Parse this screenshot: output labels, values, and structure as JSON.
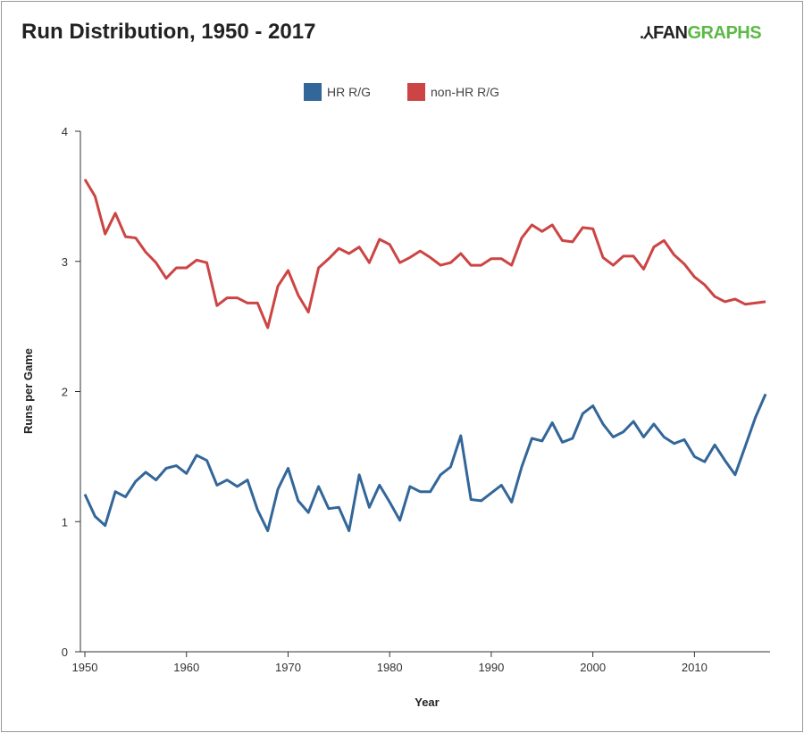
{
  "chart_data": {
    "type": "line",
    "title": "Run Distribution, 1950 - 2017",
    "logo": "FANGRAPHS",
    "xlabel": "Year",
    "ylabel": "Runs per Game",
    "xlim": [
      1950,
      2017
    ],
    "ylim": [
      0,
      4
    ],
    "xticks": [
      "1950",
      "1960",
      "1970",
      "1980",
      "1990",
      "2000",
      "2010"
    ],
    "yticks": [
      "0",
      "1",
      "2",
      "3",
      "4"
    ],
    "grid": false,
    "legend_position": "top-center",
    "x": [
      1950,
      1951,
      1952,
      1953,
      1954,
      1955,
      1956,
      1957,
      1958,
      1959,
      1960,
      1961,
      1962,
      1963,
      1964,
      1965,
      1966,
      1967,
      1968,
      1969,
      1970,
      1971,
      1972,
      1973,
      1974,
      1975,
      1976,
      1977,
      1978,
      1979,
      1980,
      1981,
      1982,
      1983,
      1984,
      1985,
      1986,
      1987,
      1988,
      1989,
      1990,
      1991,
      1992,
      1993,
      1994,
      1995,
      1996,
      1997,
      1998,
      1999,
      2000,
      2001,
      2002,
      2003,
      2004,
      2005,
      2006,
      2007,
      2008,
      2009,
      2010,
      2011,
      2012,
      2013,
      2014,
      2015,
      2016,
      2017
    ],
    "series": [
      {
        "name": "HR R/G",
        "color": "#336699",
        "values": [
          1.21,
          1.04,
          0.97,
          1.23,
          1.19,
          1.31,
          1.38,
          1.32,
          1.41,
          1.43,
          1.37,
          1.51,
          1.47,
          1.28,
          1.32,
          1.27,
          1.32,
          1.09,
          0.93,
          1.25,
          1.41,
          1.16,
          1.07,
          1.27,
          1.1,
          1.11,
          0.93,
          1.36,
          1.11,
          1.28,
          1.15,
          1.01,
          1.27,
          1.23,
          1.23,
          1.36,
          1.42,
          1.66,
          1.17,
          1.16,
          1.22,
          1.28,
          1.15,
          1.42,
          1.64,
          1.62,
          1.76,
          1.61,
          1.64,
          1.83,
          1.89,
          1.75,
          1.65,
          1.69,
          1.77,
          1.65,
          1.75,
          1.65,
          1.6,
          1.63,
          1.5,
          1.46,
          1.59,
          1.47,
          1.36,
          1.58,
          1.8,
          1.98
        ]
      },
      {
        "name": "non-HR R/G",
        "color": "#cc4444",
        "values": [
          3.63,
          3.5,
          3.21,
          3.37,
          3.19,
          3.18,
          3.07,
          2.99,
          2.87,
          2.95,
          2.95,
          3.01,
          2.99,
          2.66,
          2.72,
          2.72,
          2.68,
          2.68,
          2.49,
          2.81,
          2.93,
          2.74,
          2.61,
          2.95,
          3.02,
          3.1,
          3.06,
          3.11,
          2.99,
          3.17,
          3.13,
          2.99,
          3.03,
          3.08,
          3.03,
          2.97,
          2.99,
          3.06,
          2.97,
          2.97,
          3.02,
          3.02,
          2.97,
          3.18,
          3.28,
          3.23,
          3.28,
          3.16,
          3.15,
          3.26,
          3.25,
          3.03,
          2.97,
          3.04,
          3.04,
          2.94,
          3.11,
          3.16,
          3.05,
          2.98,
          2.88,
          2.82,
          2.73,
          2.69,
          2.71,
          2.67,
          2.68,
          2.69
        ]
      }
    ]
  }
}
